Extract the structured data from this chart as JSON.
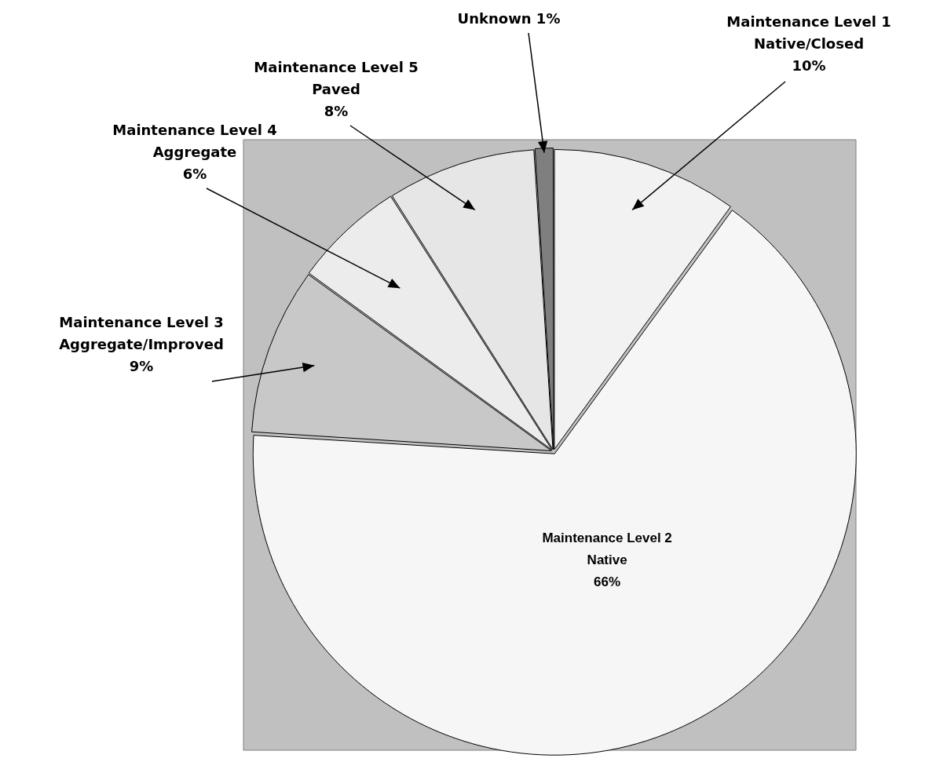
{
  "chart_data": {
    "type": "pie",
    "categories": [
      "Maintenance Level 1\nNative/Closed",
      "Maintenance Level 2\nNative",
      "Maintenance Level 3\nAggregate/Improved",
      "Maintenance Level 4\nAggregate",
      "Maintenance Level 5\nPaved",
      "Unknown"
    ],
    "values": [
      10,
      66,
      9,
      6,
      8,
      1
    ],
    "value_labels": [
      "10%",
      "66%",
      "9%",
      "6%",
      "8%",
      "1%"
    ],
    "colors": [
      "#f2f2f2",
      "#f6f6f6",
      "#c8c8c8",
      "#ececec",
      "#e6e6e6",
      "#7f7f7f"
    ],
    "legend": false
  }
}
